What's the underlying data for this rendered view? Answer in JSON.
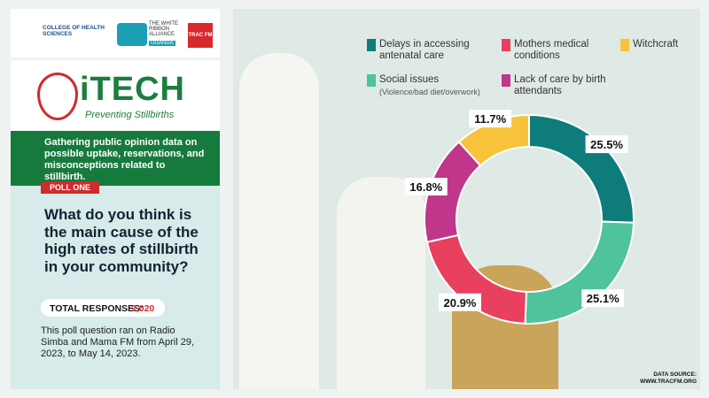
{
  "page": {
    "logos": {
      "college": "COLLEGE OF HEALTH SCIENCES",
      "ribbon": "THE WHITE RIBBON ALLIANCE",
      "ribbon_country": "UGANDA",
      "trac": "TRAC FM"
    },
    "brand": {
      "name": "iTECH",
      "tagline": "Preventing Stillbirths"
    },
    "intro": "Gathering public opinion data on possible uptake, reservations, and misconceptions related to stillbirth.",
    "poll_tag": "POLL ONE",
    "question": "What do you think is the main cause of the high rates of stillbirth in your community?",
    "responses_label": "TOTAL RESPONSES:",
    "responses_value": "2,020",
    "note": "This poll question ran on Radio Simba and Mama FM from April 29, 2023, to May 14, 2023.",
    "source_label": "DATA SOURCE:",
    "source_url": "WWW.TRACFM.ORG"
  },
  "chart_data": {
    "type": "donut",
    "categories": [
      "Delays in accessing antenatal care",
      "Social issues",
      "Mothers medical conditions",
      "Lack of care by birth attendants",
      "Witchcraft"
    ],
    "category_notes": [
      null,
      "(Violence/bad diet/overwork)",
      null,
      null,
      null
    ],
    "values": [
      25.5,
      25.1,
      20.9,
      16.8,
      11.7
    ],
    "value_labels": [
      "25.5%",
      "25.1%",
      "20.9%",
      "16.8%",
      "11.7%"
    ],
    "colors": [
      "#0f7c7c",
      "#4ec39c",
      "#e9405f",
      "#c0368b",
      "#f8c23a"
    ]
  }
}
